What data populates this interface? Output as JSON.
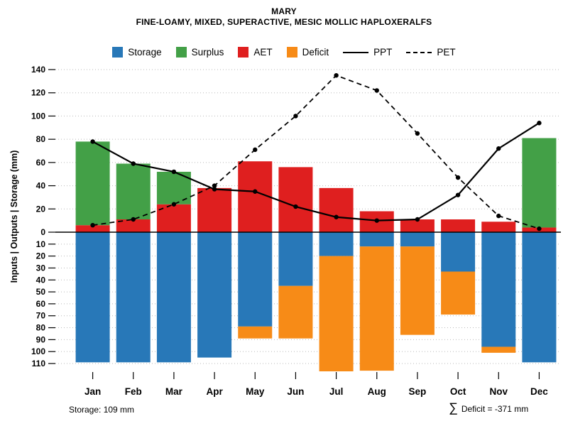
{
  "title": {
    "line1": "MARY",
    "line2": "FINE-LOAMY, MIXED, SUPERACTIVE, MESIC MOLLIC HAPLOXERALFS"
  },
  "legend": [
    {
      "label": "Storage",
      "type": "box",
      "color": "#2878b8"
    },
    {
      "label": "Surplus",
      "type": "box",
      "color": "#43a047"
    },
    {
      "label": "AET",
      "type": "box",
      "color": "#df1f1f"
    },
    {
      "label": "Deficit",
      "type": "box",
      "color": "#f78b17"
    },
    {
      "label": "PPT",
      "type": "line",
      "style": "solid"
    },
    {
      "label": "PET",
      "type": "line",
      "style": "dashed"
    }
  ],
  "footer": {
    "storage": "Storage: 109 mm",
    "sigma": "∑",
    "deficit": "Deficit = -371 mm"
  },
  "chart_data": {
    "type": "bar",
    "title": "MARY",
    "subtitle": "FINE-LOAMY, MIXED, SUPERACTIVE, MESIC MOLLIC HAPLOXERALFS",
    "ylabel": "Inputs | Outputs | Storage  (mm)",
    "categories": [
      "Jan",
      "Feb",
      "Mar",
      "Apr",
      "May",
      "Jun",
      "Jul",
      "Aug",
      "Sep",
      "Oct",
      "Nov",
      "Dec"
    ],
    "axis": {
      "upper_ticks": [
        0,
        20,
        40,
        60,
        80,
        100,
        120,
        140
      ],
      "lower_ticks": [
        10,
        20,
        30,
        40,
        50,
        60,
        70,
        80,
        90,
        100,
        110
      ],
      "upper_max": 140,
      "lower_max": 110,
      "grid": "dotted",
      "legend_position": "top"
    },
    "series": [
      {
        "name": "AET",
        "kind": "bar-up",
        "color": "#df1f1f",
        "values": [
          6,
          11,
          24,
          38,
          61,
          56,
          38,
          18,
          11,
          11,
          9,
          4
        ]
      },
      {
        "name": "Surplus",
        "kind": "bar-up-stacked",
        "color": "#43a047",
        "values": [
          72,
          48,
          28,
          0,
          0,
          0,
          0,
          0,
          0,
          0,
          0,
          77
        ]
      },
      {
        "name": "Storage",
        "kind": "bar-down",
        "color": "#2878b8",
        "values": [
          109,
          109,
          109,
          105,
          79,
          45,
          20,
          12,
          12,
          33,
          96,
          109
        ]
      },
      {
        "name": "Deficit",
        "kind": "bar-down-stacked",
        "color": "#f78b17",
        "values": [
          0,
          0,
          0,
          0,
          10,
          44,
          98,
          104,
          74,
          36,
          5,
          0
        ]
      },
      {
        "name": "PPT",
        "kind": "line",
        "style": "solid",
        "color": "#000000",
        "values": [
          78,
          59,
          52,
          37,
          35,
          22,
          13,
          10,
          11,
          32,
          72,
          94
        ]
      },
      {
        "name": "PET",
        "kind": "line",
        "style": "dashed",
        "color": "#000000",
        "values": [
          6,
          11,
          24,
          40,
          71,
          100,
          135,
          122,
          85,
          47,
          14,
          3
        ]
      }
    ]
  }
}
